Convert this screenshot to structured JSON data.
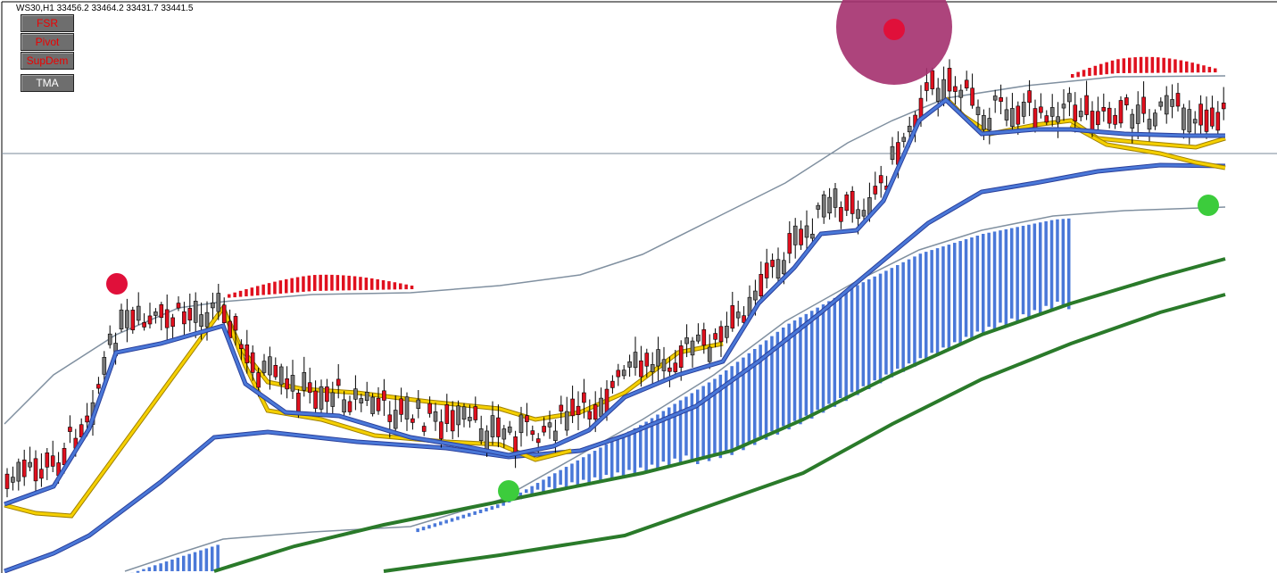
{
  "header": {
    "title": "WS30,H1  33456.2 33464.2 33431.7 33441.5"
  },
  "buttons": [
    "FSR",
    "Pivot",
    "SupDem",
    "TMA"
  ]
}
